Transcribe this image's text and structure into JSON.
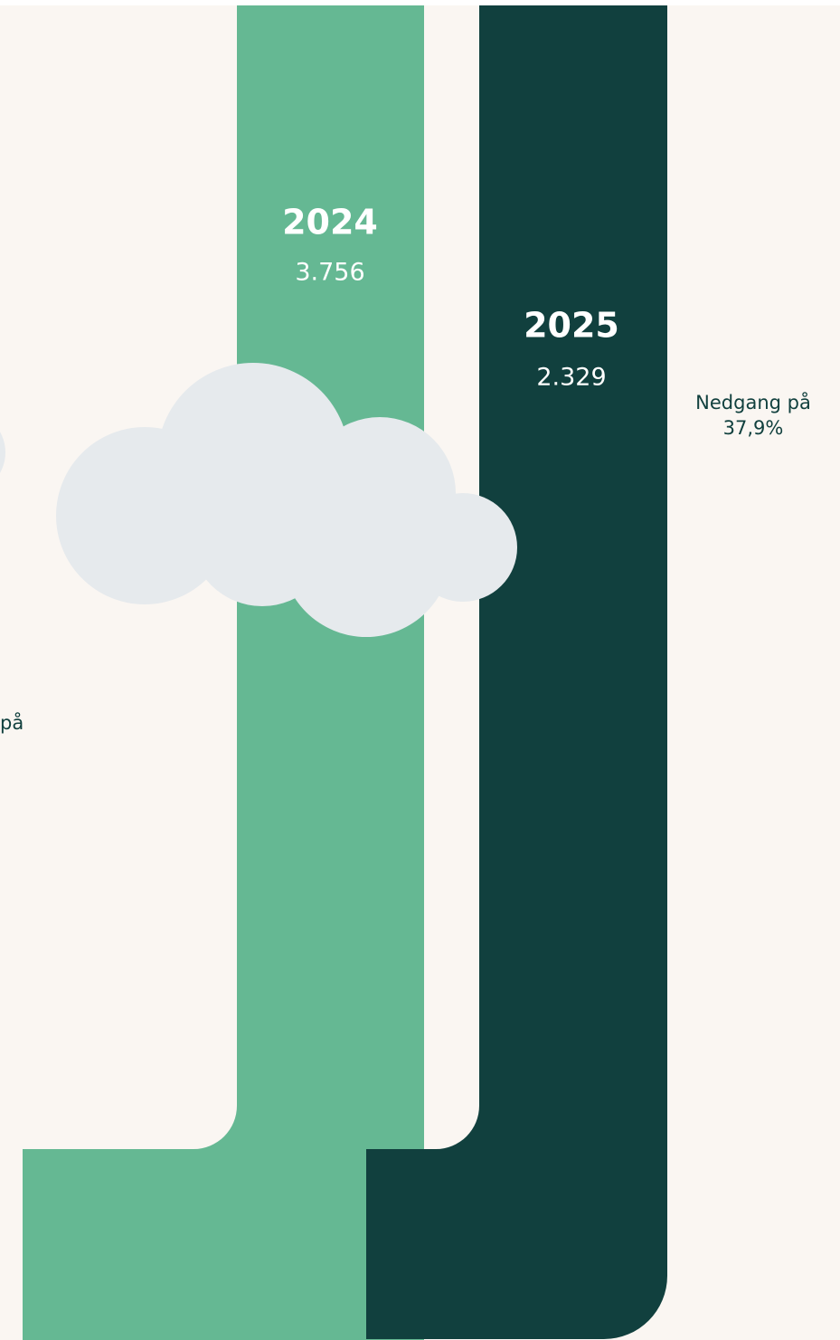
{
  "bars": [
    {
      "year": "2024",
      "value": "3.756"
    },
    {
      "year": "2025",
      "value": "2.329"
    }
  ],
  "annotations": [
    {
      "lines": [
        "Nedgang på",
        "37,9%"
      ]
    },
    {
      "lines": [
        "på"
      ]
    }
  ]
}
